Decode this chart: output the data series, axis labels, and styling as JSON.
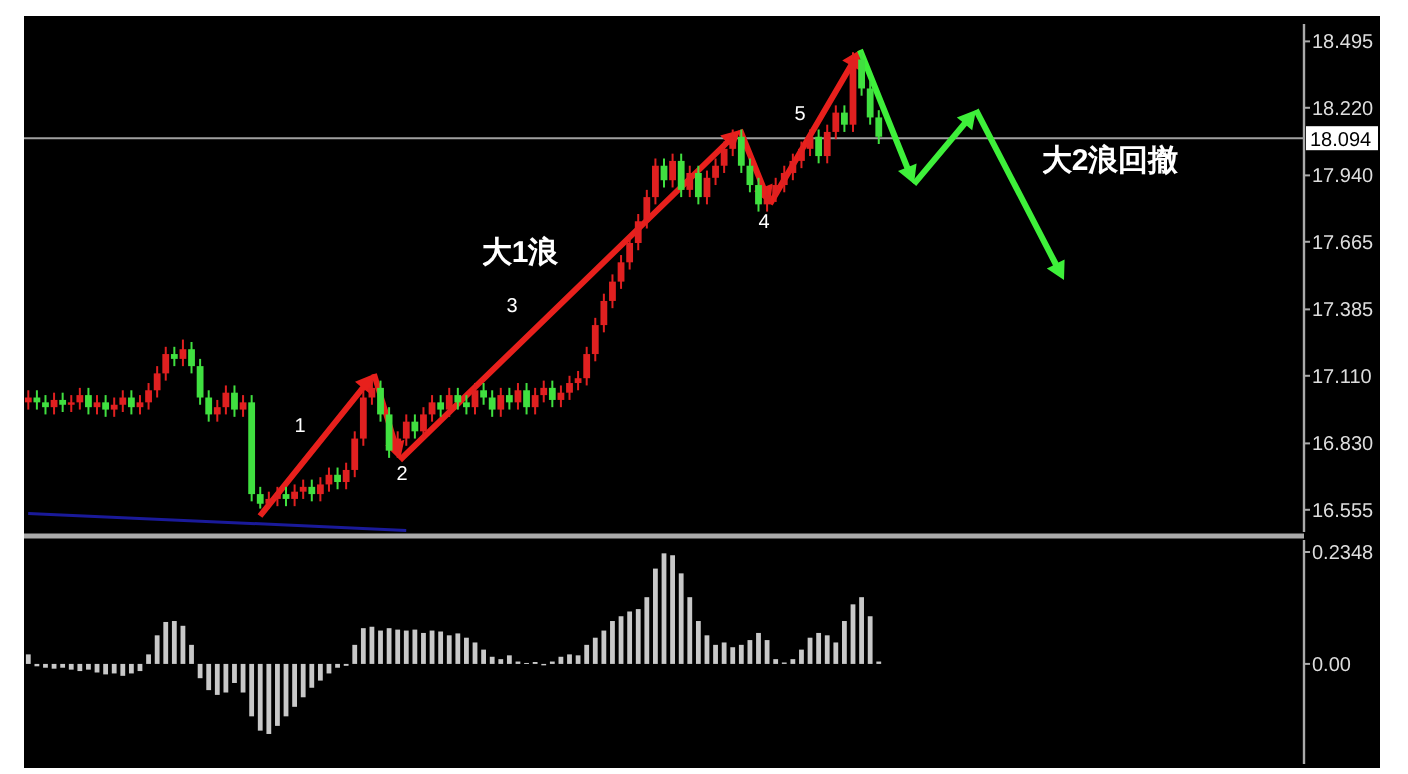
{
  "chart_data": [
    {
      "type": "candlestick",
      "categories": [
        null,
        null,
        null,
        null,
        null,
        null,
        null,
        null,
        null,
        null,
        null,
        null,
        null,
        null,
        null,
        null,
        null,
        null,
        null,
        null,
        null,
        null,
        null,
        null,
        null,
        null,
        null,
        null,
        null,
        null,
        null,
        null,
        null,
        null,
        null,
        null,
        null,
        null,
        null,
        null,
        null,
        null,
        null,
        null,
        null,
        null,
        null,
        null,
        null,
        null,
        null,
        null,
        null,
        null,
        null,
        null,
        null,
        null,
        null,
        null,
        null,
        null,
        null,
        null,
        null,
        null,
        null,
        null,
        null,
        null,
        null,
        null,
        null,
        null,
        null,
        null,
        null,
        null,
        null,
        null,
        null,
        null,
        null,
        null,
        null,
        null,
        null,
        null,
        null,
        null,
        null,
        null,
        null,
        null,
        null,
        null,
        null,
        null,
        null,
        null,
        null,
        null,
        null,
        null,
        null,
        null,
        null,
        null,
        null,
        null,
        null,
        null,
        null,
        null,
        null,
        null,
        null,
        null,
        null,
        null,
        null,
        null,
        null,
        null,
        null,
        null,
        null,
        null,
        null,
        null,
        null,
        null,
        null,
        null,
        null,
        null,
        null,
        null,
        null,
        null,
        null,
        null,
        null,
        null,
        null,
        null,
        null,
        null,
        null
      ],
      "ohlc": [
        [
          17.0,
          17.05,
          16.97,
          17.02
        ],
        [
          17.02,
          17.05,
          16.97,
          17.0
        ],
        [
          17.0,
          17.03,
          16.95,
          16.98
        ],
        [
          16.98,
          17.04,
          16.95,
          17.01
        ],
        [
          17.01,
          17.04,
          16.96,
          16.99
        ],
        [
          16.99,
          17.03,
          16.96,
          17.0
        ],
        [
          17.0,
          17.06,
          16.97,
          17.03
        ],
        [
          17.03,
          17.06,
          16.95,
          16.98
        ],
        [
          16.98,
          17.03,
          16.95,
          17.0
        ],
        [
          17.0,
          17.03,
          16.94,
          16.97
        ],
        [
          16.97,
          17.02,
          16.94,
          16.99
        ],
        [
          16.99,
          17.05,
          16.96,
          17.02
        ],
        [
          17.02,
          17.05,
          16.95,
          16.98
        ],
        [
          16.98,
          17.03,
          16.95,
          17.0
        ],
        [
          17.0,
          17.08,
          16.97,
          17.05
        ],
        [
          17.05,
          17.15,
          17.02,
          17.12
        ],
        [
          17.12,
          17.23,
          17.09,
          17.2
        ],
        [
          17.2,
          17.23,
          17.15,
          17.18
        ],
        [
          17.18,
          17.26,
          17.15,
          17.22
        ],
        [
          17.22,
          17.25,
          17.12,
          17.15
        ],
        [
          17.15,
          17.18,
          16.99,
          17.02
        ],
        [
          17.02,
          17.05,
          16.92,
          16.95
        ],
        [
          16.95,
          17.01,
          16.92,
          16.98
        ],
        [
          16.98,
          17.07,
          16.95,
          17.04
        ],
        [
          17.04,
          17.07,
          16.94,
          16.97
        ],
        [
          16.97,
          17.03,
          16.94,
          17.0
        ],
        [
          17.0,
          17.03,
          16.59,
          16.62
        ],
        [
          16.62,
          16.65,
          16.56,
          16.58
        ],
        [
          16.58,
          16.63,
          16.56,
          16.6
        ],
        [
          16.6,
          16.65,
          16.57,
          16.62
        ],
        [
          16.62,
          16.65,
          16.57,
          16.6
        ],
        [
          16.6,
          16.66,
          16.57,
          16.63
        ],
        [
          16.63,
          16.68,
          16.6,
          16.65
        ],
        [
          16.65,
          16.68,
          16.59,
          16.62
        ],
        [
          16.62,
          16.69,
          16.59,
          16.66
        ],
        [
          16.66,
          16.73,
          16.63,
          16.7
        ],
        [
          16.7,
          16.73,
          16.64,
          16.67
        ],
        [
          16.67,
          16.75,
          16.64,
          16.72
        ],
        [
          16.72,
          16.88,
          16.69,
          16.85
        ],
        [
          16.85,
          17.05,
          16.82,
          17.02
        ],
        [
          17.02,
          17.09,
          16.99,
          17.06
        ],
        [
          17.06,
          17.09,
          16.92,
          16.95
        ],
        [
          16.95,
          16.98,
          16.77,
          16.8
        ],
        [
          16.8,
          16.88,
          16.77,
          16.85
        ],
        [
          16.85,
          16.95,
          16.82,
          16.92
        ],
        [
          16.92,
          16.95,
          16.85,
          16.88
        ],
        [
          16.88,
          16.98,
          16.85,
          16.95
        ],
        [
          16.95,
          17.03,
          16.92,
          17.0
        ],
        [
          17.0,
          17.03,
          16.94,
          16.97
        ],
        [
          16.97,
          17.06,
          16.94,
          17.03
        ],
        [
          17.03,
          17.06,
          16.97,
          17.0
        ],
        [
          17.0,
          17.03,
          16.95,
          16.98
        ],
        [
          16.98,
          17.08,
          16.95,
          17.05
        ],
        [
          17.05,
          17.08,
          16.99,
          17.02
        ],
        [
          17.02,
          17.05,
          16.94,
          16.97
        ],
        [
          16.97,
          17.06,
          16.94,
          17.03
        ],
        [
          17.03,
          17.06,
          16.97,
          17.0
        ],
        [
          17.0,
          17.08,
          16.97,
          17.05
        ],
        [
          17.05,
          17.08,
          16.95,
          16.98
        ],
        [
          16.98,
          17.06,
          16.95,
          17.03
        ],
        [
          17.03,
          17.09,
          17.0,
          17.06
        ],
        [
          17.06,
          17.09,
          16.98,
          17.01
        ],
        [
          17.01,
          17.07,
          16.98,
          17.04
        ],
        [
          17.04,
          17.11,
          17.01,
          17.08
        ],
        [
          17.08,
          17.13,
          17.05,
          17.1
        ],
        [
          17.1,
          17.23,
          17.07,
          17.2
        ],
        [
          17.2,
          17.35,
          17.17,
          17.32
        ],
        [
          17.32,
          17.45,
          17.29,
          17.42
        ],
        [
          17.42,
          17.53,
          17.39,
          17.5
        ],
        [
          17.5,
          17.61,
          17.47,
          17.58
        ],
        [
          17.58,
          17.69,
          17.55,
          17.66
        ],
        [
          17.66,
          17.78,
          17.63,
          17.75
        ],
        [
          17.75,
          17.88,
          17.72,
          17.85
        ],
        [
          17.85,
          18.01,
          17.82,
          17.98
        ],
        [
          17.98,
          18.01,
          17.89,
          17.92
        ],
        [
          17.92,
          18.03,
          17.89,
          18.0
        ],
        [
          18.0,
          18.03,
          17.85,
          17.88
        ],
        [
          17.88,
          17.98,
          17.85,
          17.95
        ],
        [
          17.95,
          17.98,
          17.82,
          17.85
        ],
        [
          17.85,
          17.96,
          17.82,
          17.93
        ],
        [
          17.93,
          18.01,
          17.9,
          17.98
        ],
        [
          17.98,
          18.08,
          17.95,
          18.05
        ],
        [
          18.05,
          18.13,
          18.02,
          18.1
        ],
        [
          18.1,
          18.13,
          17.95,
          17.98
        ],
        [
          17.98,
          18.01,
          17.87,
          17.9
        ],
        [
          17.9,
          17.93,
          17.79,
          17.82
        ],
        [
          17.82,
          17.89,
          17.79,
          17.86
        ],
        [
          17.86,
          17.93,
          17.83,
          17.9
        ],
        [
          17.9,
          17.98,
          17.87,
          17.95
        ],
        [
          17.95,
          18.03,
          17.92,
          18.0
        ],
        [
          18.0,
          18.08,
          17.97,
          18.05
        ],
        [
          18.05,
          18.13,
          18.02,
          18.1
        ],
        [
          18.1,
          18.13,
          17.99,
          18.02
        ],
        [
          18.02,
          18.15,
          17.99,
          18.12
        ],
        [
          18.12,
          18.23,
          18.09,
          18.2
        ],
        [
          18.2,
          18.23,
          18.12,
          18.15
        ],
        [
          18.15,
          18.45,
          18.12,
          18.42
        ],
        [
          18.42,
          18.45,
          18.27,
          18.3
        ],
        [
          18.3,
          18.33,
          18.15,
          18.18
        ],
        [
          18.18,
          18.21,
          18.07,
          18.1
        ],
        null,
        null,
        null,
        null,
        null,
        null,
        null,
        null,
        null,
        null,
        null,
        null,
        null,
        null,
        null,
        null,
        null,
        null,
        null,
        null,
        null,
        null,
        null,
        null,
        null,
        null,
        null,
        null,
        null,
        null,
        null,
        null,
        null,
        null,
        null,
        null,
        null,
        null,
        null,
        null,
        null,
        null,
        null,
        null,
        null,
        null,
        null,
        null,
        null
      ],
      "colors": [
        "#e02020",
        "#40e040",
        "#40e040",
        "#e02020",
        "#40e040",
        "#e02020",
        "#e02020",
        "#40e040",
        "#e02020",
        "#40e040",
        "#e02020",
        "#e02020",
        "#40e040",
        "#e02020",
        "#e02020",
        "#e02020",
        "#e02020",
        "#40e040",
        "#e02020",
        "#40e040",
        "#40e040",
        "#40e040",
        "#e02020",
        "#e02020",
        "#40e040",
        "#e02020",
        "#40e040",
        "#40e040",
        "#e02020",
        "#e02020",
        "#40e040",
        "#e02020",
        "#e02020",
        "#40e040",
        "#e02020",
        "#e02020",
        "#40e040",
        "#e02020",
        "#e02020",
        "#e02020",
        "#e02020",
        "#40e040",
        "#40e040",
        "#e02020",
        "#e02020",
        "#40e040",
        "#e02020",
        "#e02020",
        "#40e040",
        "#e02020",
        "#40e040",
        "#40e040",
        "#e02020",
        "#40e040",
        "#40e040",
        "#e02020",
        "#40e040",
        "#e02020",
        "#40e040",
        "#e02020",
        "#e02020",
        "#40e040",
        "#e02020",
        "#e02020",
        "#e02020",
        "#e02020",
        "#e02020",
        "#e02020",
        "#e02020",
        "#e02020",
        "#e02020",
        "#e02020",
        "#e02020",
        "#e02020",
        "#40e040",
        "#e02020",
        "#40e040",
        "#e02020",
        "#40e040",
        "#e02020",
        "#e02020",
        "#e02020",
        "#e02020",
        "#40e040",
        "#40e040",
        "#40e040",
        "#e02020",
        "#e02020",
        "#e02020",
        "#e02020",
        "#e02020",
        "#e02020",
        "#40e040",
        "#e02020",
        "#e02020",
        "#40e040",
        "#e02020",
        "#40e040",
        "#40e040",
        "#40e040",
        null,
        null,
        null,
        null,
        null,
        null,
        null,
        null,
        null,
        null,
        null,
        null,
        null,
        null,
        null,
        null,
        null,
        null,
        null,
        null,
        null,
        null,
        null,
        null,
        null,
        null,
        null,
        null,
        null,
        null,
        null,
        null,
        null,
        null,
        null,
        null,
        null,
        null,
        null,
        null,
        null,
        null,
        null,
        null,
        null,
        null,
        null,
        null,
        null
      ],
      "series": [
        {
          "type": "line",
          "color": "#1a1a9a",
          "values": [
            16.54,
            null,
            null,
            null,
            null,
            null,
            null,
            null,
            null,
            null,
            null,
            null,
            null,
            null,
            null,
            null,
            null,
            null,
            null,
            null,
            null,
            null,
            null,
            null,
            null,
            null,
            null,
            null,
            null,
            null,
            null,
            null,
            null,
            null,
            null,
            null,
            null,
            null,
            null,
            null,
            null,
            null,
            null,
            null,
            16.47,
            null,
            null,
            null,
            null,
            null,
            null,
            null,
            null,
            null,
            null,
            null,
            null,
            null,
            null,
            null,
            null,
            null,
            null,
            null,
            null,
            null,
            null,
            null,
            null,
            null,
            null,
            null,
            null,
            null,
            null,
            null,
            null,
            null,
            null,
            null,
            null,
            null,
            null,
            null,
            null,
            null,
            null,
            null,
            null,
            null,
            null,
            null,
            null,
            null,
            null,
            null,
            null,
            null,
            null,
            null,
            null,
            null,
            null,
            null,
            null,
            null,
            null,
            null,
            null,
            null,
            null,
            null,
            null,
            null,
            null,
            null,
            null,
            null,
            null,
            null,
            null,
            null,
            null,
            null,
            null,
            null,
            null,
            null,
            null,
            null,
            null,
            null,
            null,
            null,
            null,
            null,
            null,
            null,
            null,
            null,
            null,
            null,
            null,
            null,
            null,
            null,
            null,
            null,
            null
          ]
        }
      ],
      "ylim": [
        16.463,
        18.567
      ],
      "yticks": [
        18.495,
        {
          "value": 18.22,
          "label": "18.220"
        },
        {
          "value": 17.94,
          "label": "17.940"
        },
        17.665,
        17.385,
        {
          "value": 17.11,
          "label": "17.110"
        },
        {
          "value": 16.83,
          "label": "16.830"
        },
        16.555
      ],
      "ref_lines": [
        {
          "axis": "y",
          "value": 18.094,
          "label": "18.094",
          "color": "#a0a0a0"
        }
      ],
      "annotations": [
        "1",
        "2",
        "3",
        "4",
        "5",
        "大1浪",
        "大2浪回撤"
      ],
      "tick_labels": "y"
    },
    {
      "type": "bar",
      "categories": [
        null,
        null,
        null,
        null,
        null,
        null,
        null,
        null,
        null,
        null,
        null,
        null,
        null,
        null,
        null,
        null,
        null,
        null,
        null,
        null,
        null,
        null,
        null,
        null,
        null,
        null,
        null,
        null,
        null,
        null,
        null,
        null,
        null,
        null,
        null,
        null,
        null,
        null,
        null,
        null,
        null,
        null,
        null,
        null,
        null,
        null,
        null,
        null,
        null,
        null,
        null,
        null,
        null,
        null,
        null,
        null,
        null,
        null,
        null,
        null,
        null,
        null,
        null,
        null,
        null,
        null,
        null,
        null,
        null,
        null,
        null,
        null,
        null,
        null,
        null,
        null,
        null,
        null,
        null,
        null,
        null,
        null,
        null,
        null,
        null,
        null,
        null,
        null,
        null,
        null,
        null,
        null,
        null,
        null,
        null,
        null,
        null,
        null,
        null,
        null,
        null,
        null,
        null,
        null,
        null,
        null,
        null,
        null,
        null,
        null,
        null,
        null,
        null,
        null,
        null,
        null,
        null,
        null,
        null,
        null,
        null,
        null,
        null,
        null,
        null,
        null,
        null,
        null,
        null,
        null,
        null,
        null,
        null,
        null,
        null,
        null,
        null,
        null,
        null,
        null,
        null,
        null,
        null,
        null,
        null,
        null,
        null,
        null,
        null
      ],
      "values": [
        0.02,
        -0.005,
        -0.008,
        -0.01,
        -0.008,
        -0.012,
        -0.015,
        -0.012,
        -0.018,
        -0.022,
        -0.02,
        -0.025,
        -0.02,
        -0.015,
        0.02,
        0.06,
        0.088,
        0.09,
        0.08,
        0.04,
        -0.03,
        -0.055,
        -0.065,
        -0.06,
        -0.04,
        -0.06,
        -0.11,
        -0.14,
        -0.147,
        -0.13,
        -0.11,
        -0.09,
        -0.07,
        -0.05,
        -0.035,
        -0.02,
        -0.008,
        -0.004,
        0.04,
        0.075,
        0.078,
        0.07,
        0.075,
        0.072,
        0.07,
        0.072,
        0.065,
        0.07,
        0.068,
        0.06,
        0.064,
        0.055,
        0.045,
        0.03,
        0.015,
        0.01,
        0.018,
        0.005,
        0.002,
        0.004,
        -0.003,
        0.005,
        0.015,
        0.02,
        0.018,
        0.04,
        0.055,
        0.07,
        0.09,
        0.1,
        0.11,
        0.115,
        0.14,
        0.2,
        0.232,
        0.228,
        0.19,
        0.14,
        0.09,
        0.06,
        0.04,
        0.045,
        0.035,
        0.04,
        0.05,
        0.065,
        0.05,
        0.01,
        0.003,
        0.01,
        0.03,
        0.055,
        0.065,
        0.06,
        0.045,
        0.09,
        0.125,
        0.14,
        0.1,
        0.005,
        null,
        null,
        null,
        null,
        null,
        null,
        null,
        null,
        null,
        null,
        null,
        null,
        null,
        null,
        null,
        null,
        null,
        null,
        null,
        null,
        null,
        null,
        null,
        null,
        null,
        null,
        null,
        null,
        null,
        null,
        null,
        null,
        null,
        null,
        null,
        null,
        null,
        null,
        null,
        null,
        null,
        null,
        null,
        null,
        null,
        null,
        null,
        null,
        null
      ],
      "color": "#c8c8c8",
      "ylim": [
        -0.21,
        0.26
      ],
      "yticks": [
        0.2348,
        {
          "value": 0,
          "label": "0.00"
        }
      ],
      "tick_labels": "y"
    }
  ]
}
